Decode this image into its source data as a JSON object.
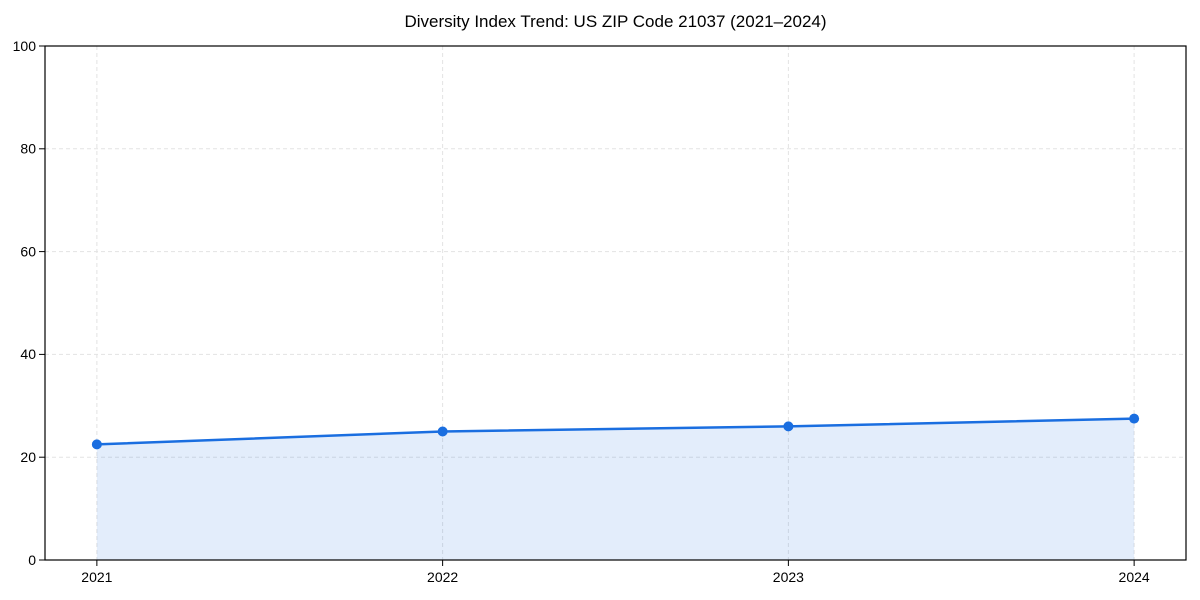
{
  "chart_data": {
    "type": "line",
    "title": "Diversity Index Trend: US ZIP Code 21037 (2021–2024)",
    "x": [
      2021,
      2022,
      2023,
      2024
    ],
    "series": [
      {
        "name": "Diversity Index",
        "values": [
          22.5,
          25.0,
          26.0,
          27.5
        ]
      }
    ],
    "area_fill": true,
    "xticks": [
      "2021",
      "2022",
      "2023",
      "2024"
    ],
    "yticks": [
      0,
      20,
      40,
      60,
      80,
      100
    ],
    "ylim": [
      0,
      100
    ],
    "x_margin_frac": 0.05,
    "xlabel": "",
    "ylabel": "",
    "grid": "dashed",
    "legend": "none",
    "colors": {
      "line": "#1a6ee0",
      "marker": "#1a6ee0",
      "fill": "rgba(26, 110, 224, 0.12)",
      "grid": "#e3e3e3",
      "spine": "#000000",
      "tick": "#000000",
      "tick_label": "#000000",
      "title": "#000000",
      "background": "#ffffff"
    }
  }
}
